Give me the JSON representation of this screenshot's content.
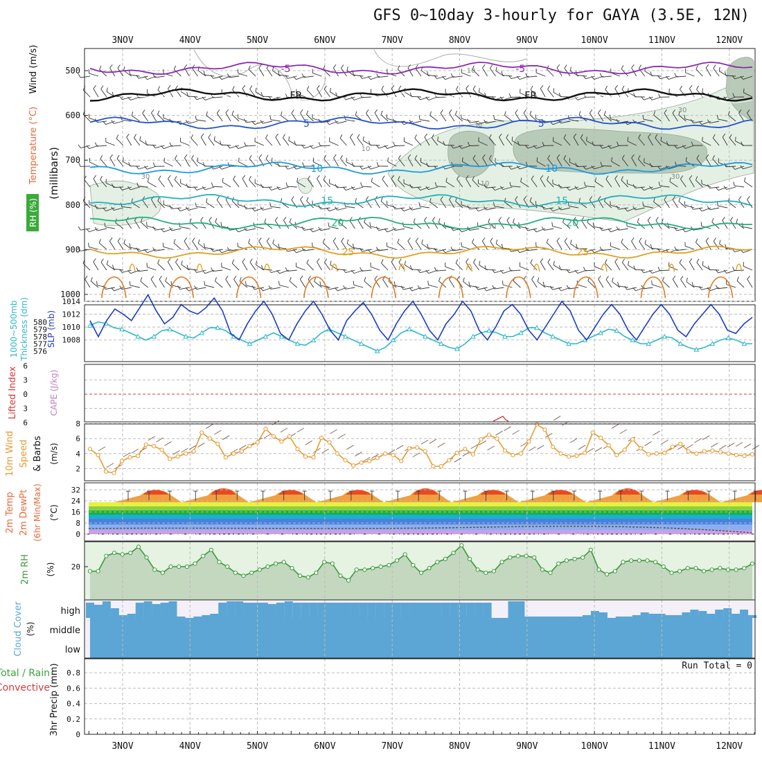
{
  "title": "GFS 0~10day 3-hourly for GAYA (3.5E, 12N)",
  "colors": {
    "temperature": "#e8693a",
    "wind": "#333333",
    "rh": "#3aa33a",
    "cape": "#c080c0",
    "lifted": "#d23a3a",
    "thickness": "#2fb8c8",
    "slp": "#1a3cc8",
    "wind10": "#e89a30",
    "barb": "#6a4a3a",
    "rh2m": "#3a9a3a",
    "cloud": "#5ba6d4",
    "rain": "#3aa33a",
    "convective": "#d23a3a"
  },
  "chart_data": [
    {
      "panel": "upper-air",
      "type": "contour",
      "ylabel_parts": [
        "Wind",
        "(m/s)",
        "Temperature",
        "(°C)",
        "RH (%)"
      ],
      "ylabel_mb": "(millibars)",
      "y_ticks": [
        "500",
        "600",
        "700",
        "800",
        "900",
        "1000"
      ],
      "date_ticks": [
        "3NOV",
        "4NOV",
        "5NOV",
        "6NOV",
        "7NOV",
        "8NOV",
        "9NOV",
        "10NOV",
        "11NOV",
        "12NOV"
      ],
      "isotherms": [
        {
          "label": "-5",
          "level_mb": 495,
          "color": "#8a2ab0"
        },
        {
          "label": "FR",
          "level_mb": 555,
          "color": "#111111"
        },
        {
          "label": "5",
          "level_mb": 618,
          "color": "#2050d0"
        },
        {
          "label": "10",
          "level_mb": 718,
          "color": "#1a9ae0"
        },
        {
          "label": "15",
          "level_mb": 790,
          "color": "#20b0b8"
        },
        {
          "label": "20",
          "level_mb": 840,
          "color": "#20b080"
        },
        {
          "label": "25",
          "level_mb": 905,
          "color": "#e0a020"
        }
      ],
      "rh_labels": [
        "10",
        "30",
        "30",
        "10",
        "30",
        "30",
        "10",
        "30"
      ]
    },
    {
      "panel": "thickness-slp",
      "type": "line",
      "ylabel_left": "Thickness (dm)",
      "ylabel_left2": "1000~500mb",
      "ylabel_right": "SLP (mb)",
      "thickness_ticks": [
        "580",
        "579",
        "578",
        "577",
        "576"
      ],
      "slp_ticks": [
        "1014",
        "1012",
        "1010",
        "1008"
      ],
      "slp": [
        1011,
        1008.5,
        1011,
        1012.8,
        1012,
        1011,
        1013,
        1015,
        1012.5,
        1010.5,
        1011.5,
        1013.5,
        1012.5,
        1012,
        1013,
        1014.5,
        1012.5,
        1009,
        1008,
        1010.5,
        1012.5,
        1014,
        1012,
        1009,
        1008,
        1010.5,
        1012.5,
        1014,
        1012,
        1009.5,
        1008,
        1011,
        1012.5,
        1013.8,
        1012,
        1009.5,
        1008,
        1010.5,
        1012.5,
        1014,
        1012,
        1009.5,
        1008,
        1010.5,
        1012,
        1014,
        1012.5,
        1009.5,
        1008,
        1010,
        1012.5,
        1013.5,
        1012,
        1009.5,
        1008,
        1010,
        1012,
        1014,
        1012.5,
        1009.5,
        1008,
        1010,
        1012,
        1013.5,
        1012,
        1009.5,
        1008,
        1010,
        1012,
        1013.5,
        1012,
        1009.5,
        1008.5,
        1010.5,
        1012,
        1013.5,
        1012,
        1009.5,
        1009,
        1010.5,
        1011.5
      ],
      "thickness": [
        579.5,
        580,
        579.8,
        579.2,
        579,
        578.5,
        578,
        577.5,
        578,
        578.8,
        579,
        578.5,
        578,
        577.8,
        578.5,
        579.2,
        579.2,
        578.8,
        578,
        577.5,
        577,
        577.5,
        578,
        578.5,
        578,
        577.5,
        577,
        576.8,
        577.5,
        578.5,
        579,
        578.5,
        578,
        577.5,
        577,
        576.5,
        576,
        576.5,
        577.5,
        578.5,
        579,
        578.5,
        578,
        577.5,
        577,
        576.5,
        576.3,
        577,
        578,
        578.5,
        578.8,
        578.5,
        578,
        578,
        578.5,
        579.2,
        579.2,
        578.5,
        578,
        577.5,
        577,
        577,
        577.5,
        578,
        578.5,
        579,
        578.8,
        578,
        577.5,
        577,
        577,
        577.5,
        578,
        577.8,
        577,
        576.5,
        576.2,
        576.5,
        577,
        577.5,
        577.8,
        577.5,
        577,
        577
      ]
    },
    {
      "panel": "cape-lifted",
      "type": "line",
      "ylabel_left": "Lifted Index",
      "ylabel_right": "CAPE (J/kg)",
      "y_ticks": [
        "6",
        "3",
        "0",
        "3",
        "6"
      ]
    },
    {
      "panel": "wind10m",
      "type": "line",
      "ylabel": "10m Wind",
      "ylabel2": "Speed",
      "ylabel3": "& Barbs",
      "yunits": "(m/s)",
      "y_ticks": [
        "8",
        "6",
        "4",
        "2"
      ],
      "speed": [
        4.6,
        3.8,
        1.6,
        1.4,
        3.0,
        3.5,
        3.7,
        5.2,
        5.0,
        4.5,
        3.3,
        3.6,
        4.0,
        4.3,
        6.8,
        6.0,
        5.3,
        3.5,
        4.0,
        4.3,
        5.0,
        5.5,
        7.3,
        6.3,
        5.6,
        6.3,
        4.6,
        3.6,
        3.5,
        6.1,
        5.5,
        4.0,
        3.1,
        2.4,
        2.8,
        3.0,
        3.4,
        4.0,
        3.8,
        3.0,
        4.7,
        4.8,
        4.3,
        2.3,
        2.3,
        3.1,
        4.1,
        4.6,
        3.9,
        5.9,
        6.5,
        6.0,
        4.4,
        3.8,
        4.0,
        5.6,
        7.9,
        7.2,
        4.9,
        4.0,
        3.6,
        3.7,
        4.1,
        6.8,
        6.1,
        5.1,
        3.8,
        4.5,
        5.9,
        4.7,
        3.9,
        4.0,
        4.1,
        4.9,
        5.3,
        4.3,
        4.0,
        4.3,
        4.4,
        4.2,
        4.0,
        3.8,
        3.7,
        3.9
      ]
    },
    {
      "panel": "temp2m",
      "type": "area",
      "ylabel": "2m Temp",
      "ylabel2": "2m DewPt",
      "ylabel3": "(6hr Min/Max)",
      "yunits": "(°C)",
      "y_ticks": [
        "32",
        "24",
        "16",
        "8",
        "0"
      ]
    },
    {
      "panel": "rh2m",
      "type": "area",
      "ylabel": "2m RH",
      "yunits": "(%)",
      "y_ticks": [
        "20"
      ],
      "rh": [
        17,
        17,
        27,
        29,
        28,
        29,
        33,
        26,
        18,
        16,
        20,
        20,
        20,
        22,
        27,
        31,
        23,
        20,
        16,
        14,
        16,
        18,
        20,
        22,
        23,
        19,
        14,
        13,
        16,
        23,
        22,
        14,
        11,
        18,
        18,
        19,
        20,
        21,
        24,
        28,
        21,
        16,
        19,
        23,
        25,
        29,
        34,
        25,
        18,
        16,
        17,
        23,
        26,
        27,
        27,
        26,
        18,
        16,
        22,
        24,
        25,
        26,
        31,
        18,
        15,
        17,
        23,
        24,
        24,
        24,
        23,
        20,
        16,
        17,
        19,
        19,
        17,
        18,
        19,
        18,
        18,
        19,
        22
      ]
    },
    {
      "panel": "cloud",
      "type": "area",
      "ylabel": "Cloud Cover",
      "yunits": "(%)",
      "levels": [
        "high",
        "middle",
        "low"
      ]
    },
    {
      "panel": "precip",
      "type": "bar",
      "ylabel": "3hr Precip (mm)",
      "ylabel_total": "Total / Rain",
      "ylabel_conv": "Convective",
      "run_total": "Run Total = 0",
      "y_ticks": [
        "0.8",
        "0.6",
        "0.4",
        "0.2",
        "0"
      ]
    }
  ]
}
